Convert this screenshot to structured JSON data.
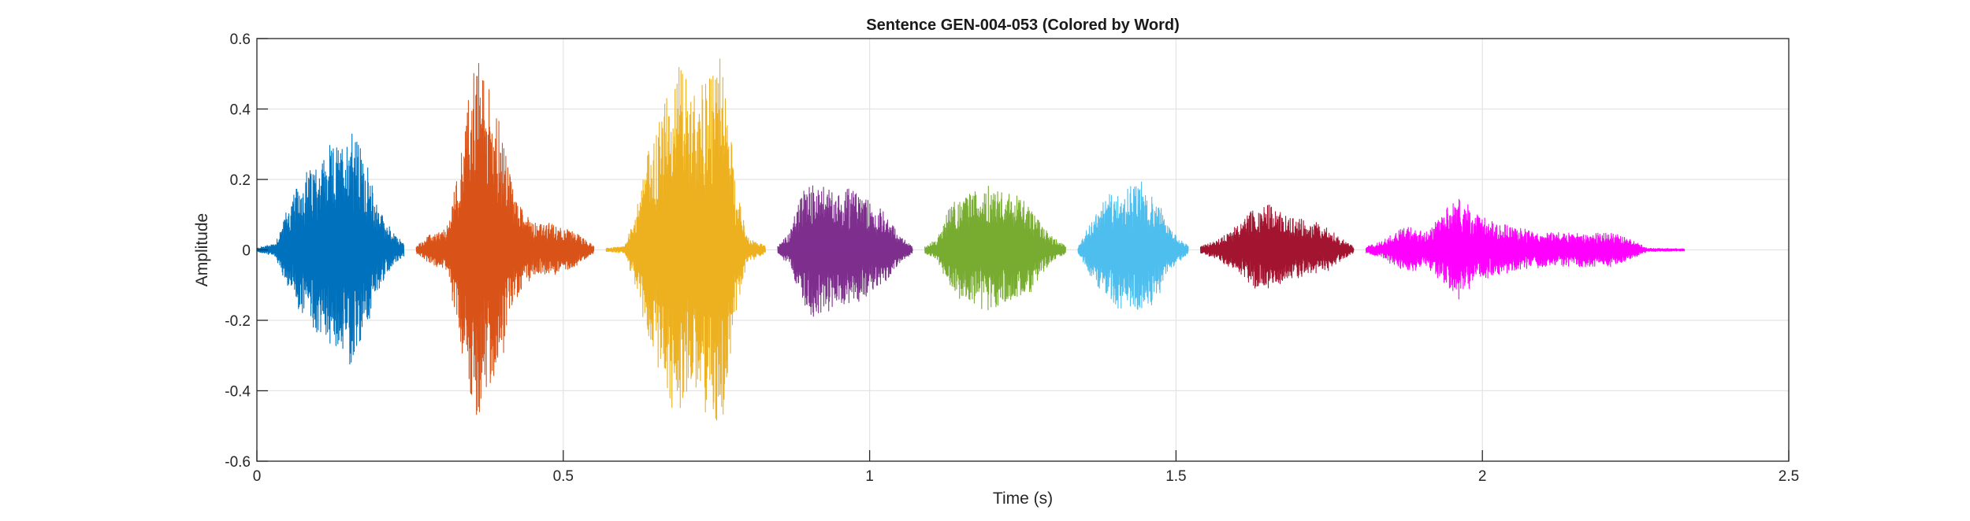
{
  "chart_data": {
    "type": "line",
    "title": "Sentence GEN-004-053 (Colored by Word)",
    "xlabel": "Time (s)",
    "ylabel": "Amplitude",
    "xlim": [
      0,
      2.5
    ],
    "ylim": [
      -0.6,
      0.6
    ],
    "x_ticks": [
      0,
      0.5,
      1,
      1.5,
      2,
      2.5
    ],
    "y_ticks": [
      -0.6,
      -0.4,
      -0.2,
      0,
      0.2,
      0.4,
      0.6
    ],
    "x_tick_labels": [
      "0",
      "0.5",
      "1",
      "1.5",
      "2",
      "2.5"
    ],
    "y_tick_labels": [
      "-0.6",
      "-0.4",
      "-0.2",
      "0",
      "0.2",
      "0.4",
      "0.6"
    ],
    "grid": true,
    "legend": "none",
    "series": [
      {
        "color": "#0072BD",
        "x_start": 0.0,
        "x_end": 0.24,
        "envelope": [
          [
            0.0,
            0.005
          ],
          [
            0.03,
            0.02
          ],
          [
            0.05,
            0.12
          ],
          [
            0.08,
            0.22
          ],
          [
            0.11,
            0.27
          ],
          [
            0.14,
            0.3
          ],
          [
            0.155,
            0.37
          ],
          [
            0.17,
            0.28
          ],
          [
            0.2,
            0.12
          ],
          [
            0.22,
            0.05
          ],
          [
            0.24,
            0.02
          ]
        ]
      },
      {
        "color": "#D95319",
        "x_start": 0.26,
        "x_end": 0.55,
        "envelope": [
          [
            0.26,
            0.01
          ],
          [
            0.28,
            0.04
          ],
          [
            0.31,
            0.06
          ],
          [
            0.33,
            0.25
          ],
          [
            0.35,
            0.48
          ],
          [
            0.36,
            0.54
          ],
          [
            0.38,
            0.44
          ],
          [
            0.4,
            0.33
          ],
          [
            0.42,
            0.16
          ],
          [
            0.45,
            0.08
          ],
          [
            0.49,
            0.07
          ],
          [
            0.52,
            0.05
          ],
          [
            0.55,
            0.01
          ]
        ]
      },
      {
        "color": "#EDB120",
        "x_start": 0.57,
        "x_end": 0.83,
        "envelope": [
          [
            0.57,
            0.005
          ],
          [
            0.6,
            0.01
          ],
          [
            0.62,
            0.12
          ],
          [
            0.64,
            0.3
          ],
          [
            0.66,
            0.38
          ],
          [
            0.675,
            0.5
          ],
          [
            0.69,
            0.55
          ],
          [
            0.705,
            0.45
          ],
          [
            0.72,
            0.42
          ],
          [
            0.74,
            0.5
          ],
          [
            0.755,
            0.54
          ],
          [
            0.77,
            0.4
          ],
          [
            0.78,
            0.2
          ],
          [
            0.8,
            0.04
          ],
          [
            0.83,
            0.01
          ]
        ]
      },
      {
        "color": "#7E2F8E",
        "x_start": 0.85,
        "x_end": 1.07,
        "envelope": [
          [
            0.85,
            0.01
          ],
          [
            0.87,
            0.05
          ],
          [
            0.89,
            0.17
          ],
          [
            0.91,
            0.2
          ],
          [
            0.94,
            0.18
          ],
          [
            0.97,
            0.17
          ],
          [
            1.0,
            0.14
          ],
          [
            1.03,
            0.09
          ],
          [
            1.05,
            0.04
          ],
          [
            1.07,
            0.01
          ]
        ]
      },
      {
        "color": "#77AC30",
        "x_start": 1.09,
        "x_end": 1.32,
        "envelope": [
          [
            1.09,
            0.01
          ],
          [
            1.11,
            0.03
          ],
          [
            1.13,
            0.12
          ],
          [
            1.16,
            0.16
          ],
          [
            1.2,
            0.18
          ],
          [
            1.23,
            0.16
          ],
          [
            1.26,
            0.13
          ],
          [
            1.29,
            0.05
          ],
          [
            1.32,
            0.01
          ]
        ]
      },
      {
        "color": "#4DBEEE",
        "x_start": 1.34,
        "x_end": 1.52,
        "envelope": [
          [
            1.34,
            0.01
          ],
          [
            1.36,
            0.08
          ],
          [
            1.38,
            0.13
          ],
          [
            1.41,
            0.19
          ],
          [
            1.44,
            0.19
          ],
          [
            1.47,
            0.15
          ],
          [
            1.49,
            0.06
          ],
          [
            1.52,
            0.01
          ]
        ]
      },
      {
        "color": "#A2142F",
        "x_start": 1.54,
        "x_end": 1.79,
        "envelope": [
          [
            1.54,
            0.01
          ],
          [
            1.57,
            0.03
          ],
          [
            1.6,
            0.07
          ],
          [
            1.63,
            0.12
          ],
          [
            1.65,
            0.13
          ],
          [
            1.68,
            0.09
          ],
          [
            1.72,
            0.08
          ],
          [
            1.75,
            0.06
          ],
          [
            1.77,
            0.03
          ],
          [
            1.79,
            0.01
          ]
        ]
      },
      {
        "color": "#FF00FF",
        "x_start": 1.81,
        "x_end": 2.33,
        "envelope": [
          [
            1.81,
            0.01
          ],
          [
            1.83,
            0.02
          ],
          [
            1.86,
            0.05
          ],
          [
            1.88,
            0.07
          ],
          [
            1.91,
            0.05
          ],
          [
            1.93,
            0.09
          ],
          [
            1.96,
            0.15
          ],
          [
            1.99,
            0.1
          ],
          [
            2.03,
            0.07
          ],
          [
            2.1,
            0.05
          ],
          [
            2.17,
            0.05
          ],
          [
            2.21,
            0.05
          ],
          [
            2.24,
            0.03
          ],
          [
            2.27,
            0.005
          ],
          [
            2.33,
            0.003
          ]
        ]
      }
    ]
  }
}
